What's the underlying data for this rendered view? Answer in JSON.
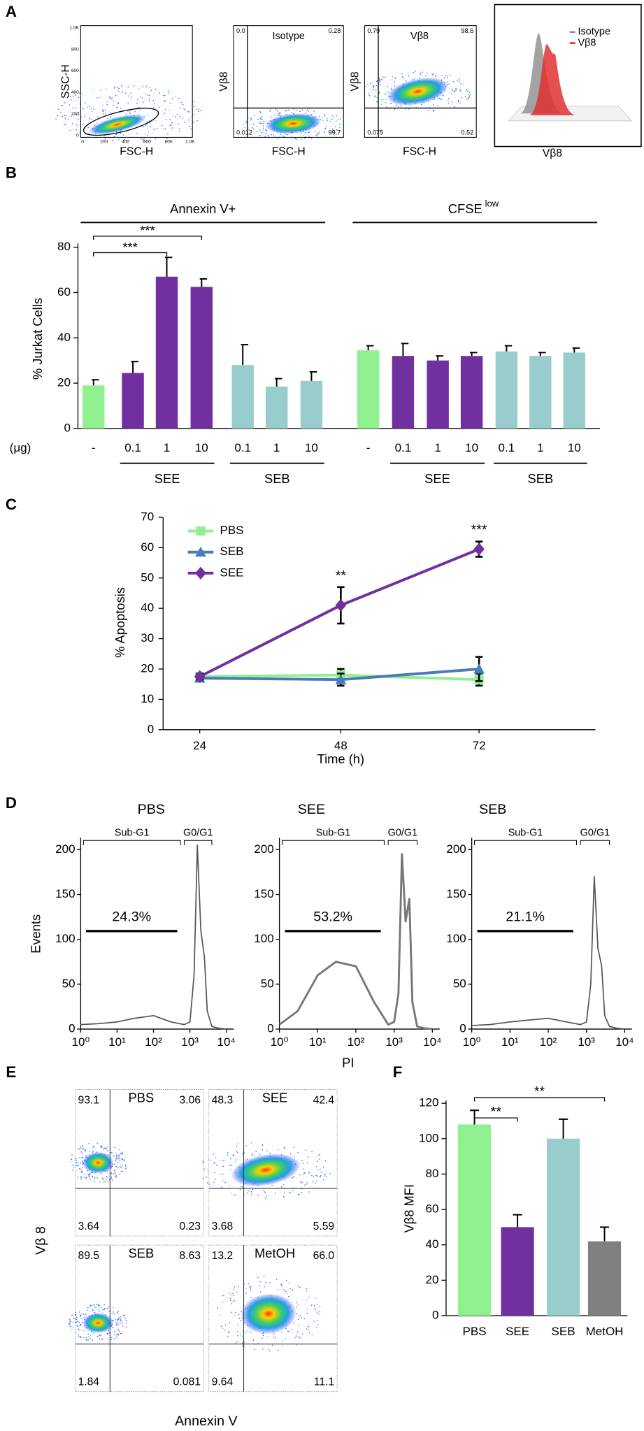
{
  "panel_labels": [
    "A",
    "B",
    "C",
    "D",
    "E",
    "F"
  ],
  "panel_a": {
    "plots": [
      {
        "xlabel": "FSC-H",
        "ylabel": "SSC-H",
        "xticks": [
          "0",
          "200",
          "400",
          "600",
          "800",
          "1.0K"
        ],
        "yticks": [
          "0",
          "200",
          "400",
          "600",
          "800",
          "1.0K"
        ]
      },
      {
        "title": "Isotype",
        "xlabel": "FSC-H",
        "ylabel": "Vβ8",
        "quadrants": [
          "0.0",
          "0.28",
          "0.012",
          "99.7"
        ]
      },
      {
        "title": "Vβ8",
        "xlabel": "FSC-H",
        "ylabel": "Vβ8",
        "quadrants": [
          "0.79",
          "98.6",
          "0.075",
          "0.52"
        ]
      },
      {
        "xlabel": "Vβ8",
        "legend": [
          {
            "name": "Isotype",
            "color": "#8c8c8c"
          },
          {
            "name": "Vβ8",
            "color": "#e03030"
          }
        ]
      }
    ]
  },
  "chart_data": [
    {
      "type": "grouped-bar",
      "ylabel": "% Jurkat Cells",
      "unit_label": "(μg)",
      "ylim": [
        0,
        80
      ],
      "yticks": [
        0,
        20,
        40,
        60,
        80
      ],
      "groups": [
        {
          "title": "Annexin V+",
          "categories": [
            "-",
            "0.1",
            "1",
            "10",
            "0.1",
            "1",
            "10"
          ],
          "values": [
            19,
            24.5,
            67,
            62.5,
            28,
            18.5,
            21
          ],
          "errors": [
            2.5,
            5,
            8.5,
            3.5,
            9,
            3.5,
            4
          ],
          "colors": [
            "#90f090",
            "#7030a0",
            "#7030a0",
            "#7030a0",
            "#99cccc",
            "#99cccc",
            "#99cccc"
          ],
          "treatments": [
            {
              "name": "SEE",
              "from": 1,
              "to": 3
            },
            {
              "name": "SEB",
              "from": 4,
              "to": 6
            }
          ],
          "significance": [
            {
              "text": "***",
              "from": 0,
              "to": 2
            },
            {
              "text": "***",
              "from": 0,
              "to": 3
            }
          ]
        },
        {
          "title": "CFSE",
          "title_sup": "low",
          "categories": [
            "-",
            "0.1",
            "1",
            "10",
            "0.1",
            "1",
            "10"
          ],
          "values": [
            34.5,
            32,
            30,
            32,
            34,
            32,
            33.5
          ],
          "errors": [
            2,
            5.5,
            2,
            1.5,
            2.5,
            1.5,
            2
          ],
          "colors": [
            "#90f090",
            "#7030a0",
            "#7030a0",
            "#7030a0",
            "#99cccc",
            "#99cccc",
            "#99cccc"
          ],
          "treatments": [
            {
              "name": "SEE",
              "from": 1,
              "to": 3
            },
            {
              "name": "SEB",
              "from": 4,
              "to": 6
            }
          ]
        }
      ]
    },
    {
      "type": "line",
      "xlabel": "Time (h)",
      "ylabel": "% Apoptosis",
      "categories": [
        "24",
        "48",
        "72"
      ],
      "ylim": [
        0,
        70
      ],
      "yticks": [
        0,
        10,
        20,
        30,
        40,
        50,
        60,
        70
      ],
      "series": [
        {
          "name": "PBS",
          "color": "#90f090",
          "marker": "square",
          "values": [
            17.5,
            18,
            16.5
          ],
          "errors": [
            1,
            2,
            2
          ]
        },
        {
          "name": "SEB",
          "color": "#4a7ab8",
          "marker": "triangle",
          "values": [
            17,
            16.5,
            20
          ],
          "errors": [
            1,
            2,
            4
          ]
        },
        {
          "name": "SEE",
          "color": "#7030a0",
          "marker": "diamond",
          "values": [
            17.5,
            41,
            59.5
          ],
          "errors": [
            1,
            6,
            2.5
          ]
        }
      ],
      "annotations": [
        {
          "text": "**",
          "series": 2,
          "index": 1
        },
        {
          "text": "***",
          "series": 2,
          "index": 2
        }
      ]
    },
    {
      "type": "histogram-line",
      "title": "PBS",
      "ylabel": "Events",
      "xscale": "log",
      "color": "#555555",
      "x": [
        1,
        3,
        10,
        30,
        100,
        300,
        700,
        1000,
        1300,
        1600,
        2000,
        2500,
        3000,
        4000,
        6000,
        10000
      ],
      "values": [
        5,
        6,
        8,
        12,
        15,
        8,
        5,
        8,
        60,
        205,
        110,
        80,
        20,
        3,
        1,
        0
      ],
      "xlim": [
        1,
        10000
      ],
      "ylim": [
        0,
        200
      ],
      "yticks": [
        0,
        50,
        100,
        150,
        200
      ],
      "xticks": [
        {
          "value": 1,
          "label": "10⁰"
        },
        {
          "value": 10,
          "label": "10¹"
        },
        {
          "value": 100,
          "label": "10²"
        },
        {
          "value": 1000,
          "label": "10³"
        },
        {
          "value": 10000,
          "label": "10⁴"
        }
      ],
      "regions": [
        "Sub-G1",
        "G0/G1"
      ],
      "percent": "24.3%"
    },
    {
      "type": "histogram-line",
      "title": "SEE",
      "xlabel": "PI",
      "xscale": "log",
      "color": "#777777",
      "x": [
        1,
        3,
        10,
        30,
        100,
        300,
        700,
        1000,
        1300,
        1600,
        2000,
        2500,
        3000,
        4000,
        6000,
        10000
      ],
      "values": [
        5,
        20,
        60,
        75,
        70,
        30,
        5,
        8,
        40,
        195,
        120,
        145,
        30,
        3,
        1,
        0
      ],
      "xlim": [
        1,
        10000
      ],
      "ylim": [
        0,
        200
      ],
      "yticks": [
        0,
        50,
        100,
        150,
        200
      ],
      "xticks": [
        {
          "value": 1,
          "label": "10⁰"
        },
        {
          "value": 10,
          "label": "10¹"
        },
        {
          "value": 100,
          "label": "10²"
        },
        {
          "value": 1000,
          "label": "10³"
        },
        {
          "value": 10000,
          "label": "10⁴"
        }
      ],
      "regions": [
        "Sub-G1",
        "G0/G1"
      ],
      "percent": "53.2%"
    },
    {
      "type": "histogram-line",
      "title": "SEB",
      "xscale": "log",
      "color": "#555555",
      "x": [
        1,
        3,
        10,
        30,
        100,
        300,
        700,
        1000,
        1300,
        1600,
        2000,
        2500,
        3000,
        4000,
        6000,
        10000
      ],
      "values": [
        4,
        5,
        8,
        10,
        12,
        8,
        5,
        8,
        50,
        170,
        90,
        70,
        15,
        3,
        1,
        0
      ],
      "xlim": [
        1,
        10000
      ],
      "ylim": [
        0,
        200
      ],
      "yticks": [
        0,
        50,
        100,
        150,
        200
      ],
      "xticks": [
        {
          "value": 1,
          "label": "10⁰"
        },
        {
          "value": 10,
          "label": "10¹"
        },
        {
          "value": 100,
          "label": "10²"
        },
        {
          "value": 1000,
          "label": "10³"
        },
        {
          "value": 10000,
          "label": "10⁴"
        }
      ],
      "regions": [
        "Sub-G1",
        "G0/G1"
      ],
      "percent": "21.1%"
    },
    {
      "type": "bar",
      "ylabel": "Vβ8 MFI",
      "categories": [
        "PBS",
        "SEE",
        "SEB",
        "MetOH"
      ],
      "values": [
        108,
        50,
        100,
        42
      ],
      "errors": [
        8,
        7,
        11,
        8
      ],
      "colors": [
        "#90f090",
        "#7030a0",
        "#99cccc",
        "#808080"
      ],
      "ylim": [
        0,
        120
      ],
      "yticks": [
        0,
        20,
        40,
        60,
        80,
        100,
        120
      ],
      "significance": [
        {
          "text": "**",
          "from": 0,
          "to": 1
        },
        {
          "text": "**",
          "from": 0,
          "to": 3
        }
      ]
    }
  ],
  "panel_e": {
    "ylabel": "Vβ 8",
    "xlabel": "Annexin V",
    "plots": [
      {
        "title": "PBS",
        "quadrants": [
          "93.1",
          "3.06",
          "3.64",
          "0.23"
        ]
      },
      {
        "title": "SEE",
        "quadrants": [
          "48.3",
          "42.4",
          "3.68",
          "5.59"
        ]
      },
      {
        "title": "SEB",
        "quadrants": [
          "89.5",
          "8.63",
          "1.84",
          "0.081"
        ]
      },
      {
        "title": "MetOH",
        "quadrants": [
          "13.2",
          "66.0",
          "9.64",
          "11.1"
        ]
      }
    ]
  }
}
